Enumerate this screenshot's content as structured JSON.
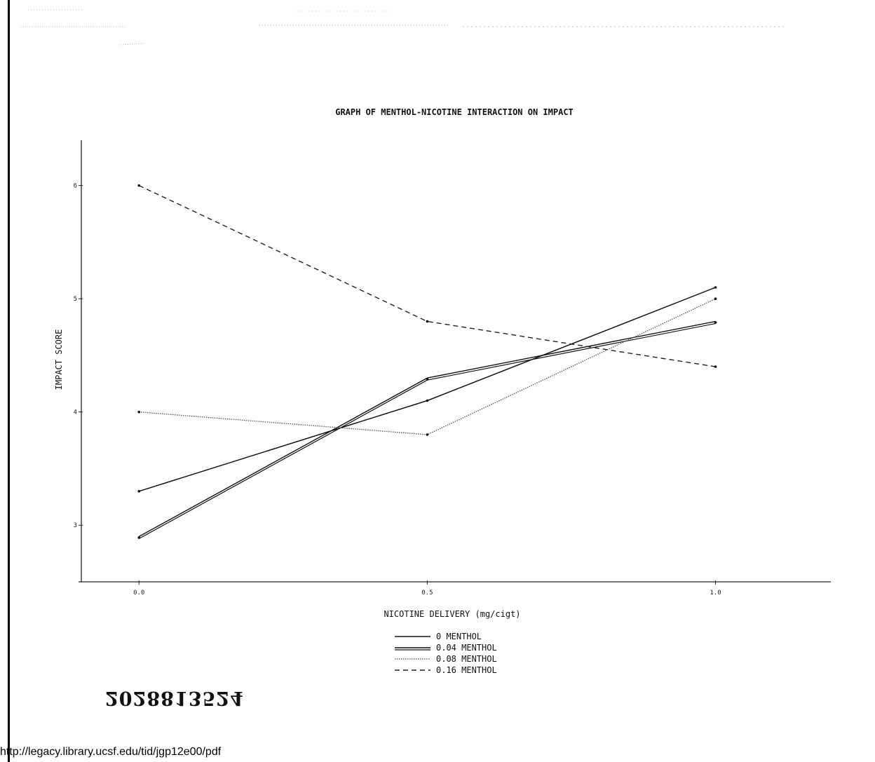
{
  "chart_data": {
    "type": "line",
    "title": "GRAPH OF MENTHOL-NICOTINE INTERACTION ON IMPACT",
    "xlabel": "NICOTINE DELIVERY (mg/cigt)",
    "ylabel": "IMPACT SCORE",
    "x": [
      0.0,
      0.5,
      1.0
    ],
    "x_ticks": [
      "0.0",
      "0.5",
      "1.0"
    ],
    "y_ticks": [
      "3",
      "4",
      "5",
      "6"
    ],
    "xlim": [
      -0.1,
      1.2
    ],
    "ylim": [
      2.5,
      6.4
    ],
    "grid": false,
    "legend_position": "bottom-center",
    "series": [
      {
        "name": "0 MENTHOL",
        "values": [
          3.3,
          4.1,
          5.1
        ],
        "style": "solid"
      },
      {
        "name": "0.04 MENTHOL",
        "values": [
          2.9,
          4.3,
          4.8
        ],
        "style": "double"
      },
      {
        "name": "0.08 MENTHOL",
        "values": [
          4.0,
          3.8,
          5.0
        ],
        "style": "dotted"
      },
      {
        "name": "0.16 MENTHOL",
        "values": [
          6.0,
          4.8,
          4.4
        ],
        "style": "dashed"
      }
    ]
  },
  "document": {
    "doc_id": "2028813524",
    "source_url": "http://legacy.library.ucsf.edu/tid/jgp12e00/pdf"
  }
}
